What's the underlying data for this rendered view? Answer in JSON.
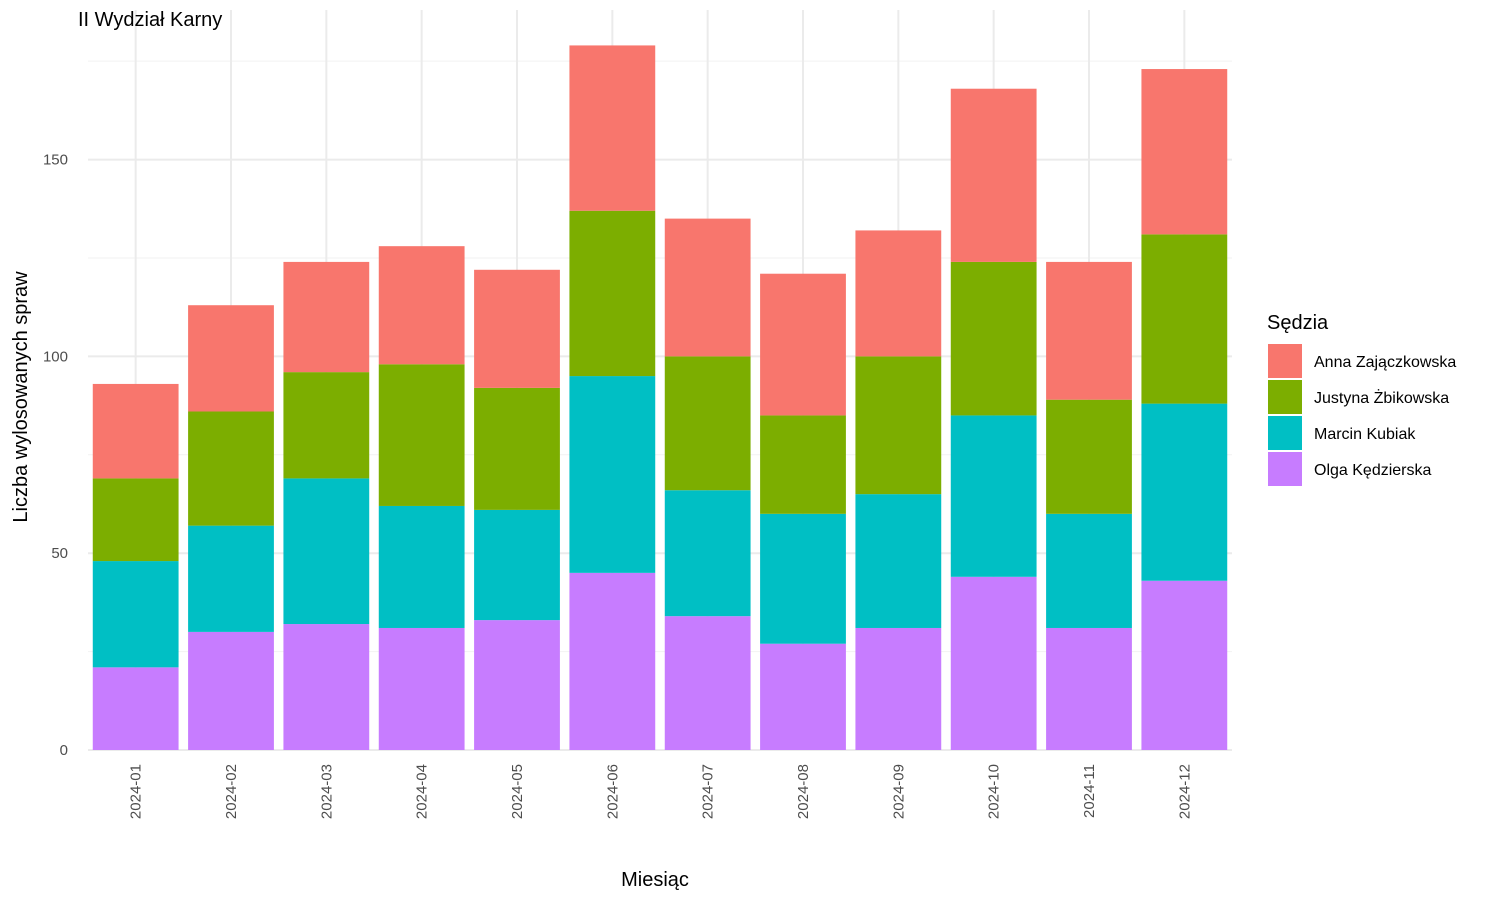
{
  "chart_data": {
    "type": "bar",
    "stacked": true,
    "title": "II Wydział Karny",
    "xlabel": "Miesiąc",
    "ylabel": "Liczba wylosowanych spraw",
    "ylim": [
      0,
      190
    ],
    "yticks": [
      0,
      50,
      100,
      150
    ],
    "grid": true,
    "legend_title": "Sędzia",
    "legend_position": "right",
    "categories": [
      "2024-01",
      "2024-02",
      "2024-03",
      "2024-04",
      "2024-05",
      "2024-06",
      "2024-07",
      "2024-08",
      "2024-09",
      "2024-10",
      "2024-11",
      "2024-12"
    ],
    "series": [
      {
        "name": "Olga Kędzierska",
        "color": "#C77CFF",
        "values": [
          21,
          30,
          32,
          31,
          33,
          45,
          34,
          27,
          31,
          44,
          31,
          43
        ]
      },
      {
        "name": "Marcin Kubiak",
        "color": "#00BFC4",
        "values": [
          27,
          27,
          37,
          31,
          28,
          50,
          32,
          33,
          34,
          41,
          29,
          45
        ]
      },
      {
        "name": "Justyna Żbikowska",
        "color": "#7CAE00",
        "values": [
          21,
          29,
          27,
          36,
          31,
          42,
          34,
          25,
          35,
          39,
          29,
          43
        ]
      },
      {
        "name": "Anna Zajączkowska",
        "color": "#F8766D",
        "values": [
          24,
          27,
          28,
          30,
          30,
          42,
          35,
          36,
          32,
          44,
          35,
          42
        ]
      }
    ],
    "legend_order": [
      "Anna Zajączkowska",
      "Justyna Żbikowska",
      "Marcin Kubiak",
      "Olga Kędzierska"
    ]
  }
}
